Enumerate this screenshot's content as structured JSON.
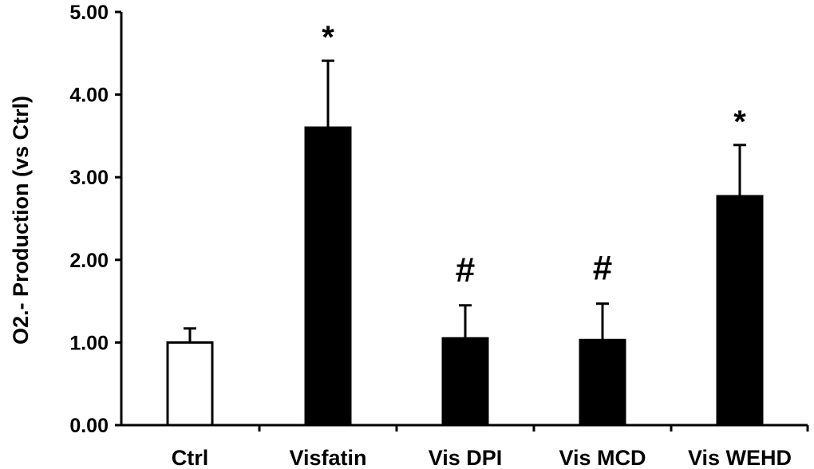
{
  "chart_data": {
    "type": "bar",
    "title": "",
    "xlabel": "",
    "ylabel": "O2.- Production (vs Ctrl)",
    "categories": [
      "Ctrl",
      "Visfatin",
      "Vis DPI",
      "Vis MCD",
      "Vis WEHD"
    ],
    "values": [
      1.0,
      3.6,
      1.05,
      1.03,
      2.77
    ],
    "errors": [
      0.17,
      0.81,
      0.4,
      0.44,
      0.62
    ],
    "fill_colors": [
      "#ffffff",
      "#000000",
      "#000000",
      "#000000",
      "#000000"
    ],
    "annotations": [
      "",
      "*",
      "#",
      "#",
      "*"
    ],
    "ylim": [
      0,
      5
    ],
    "yticks": [
      "0.00",
      "1.00",
      "2.00",
      "3.00",
      "4.00",
      "5.00"
    ],
    "grid": false,
    "legend": "none"
  }
}
